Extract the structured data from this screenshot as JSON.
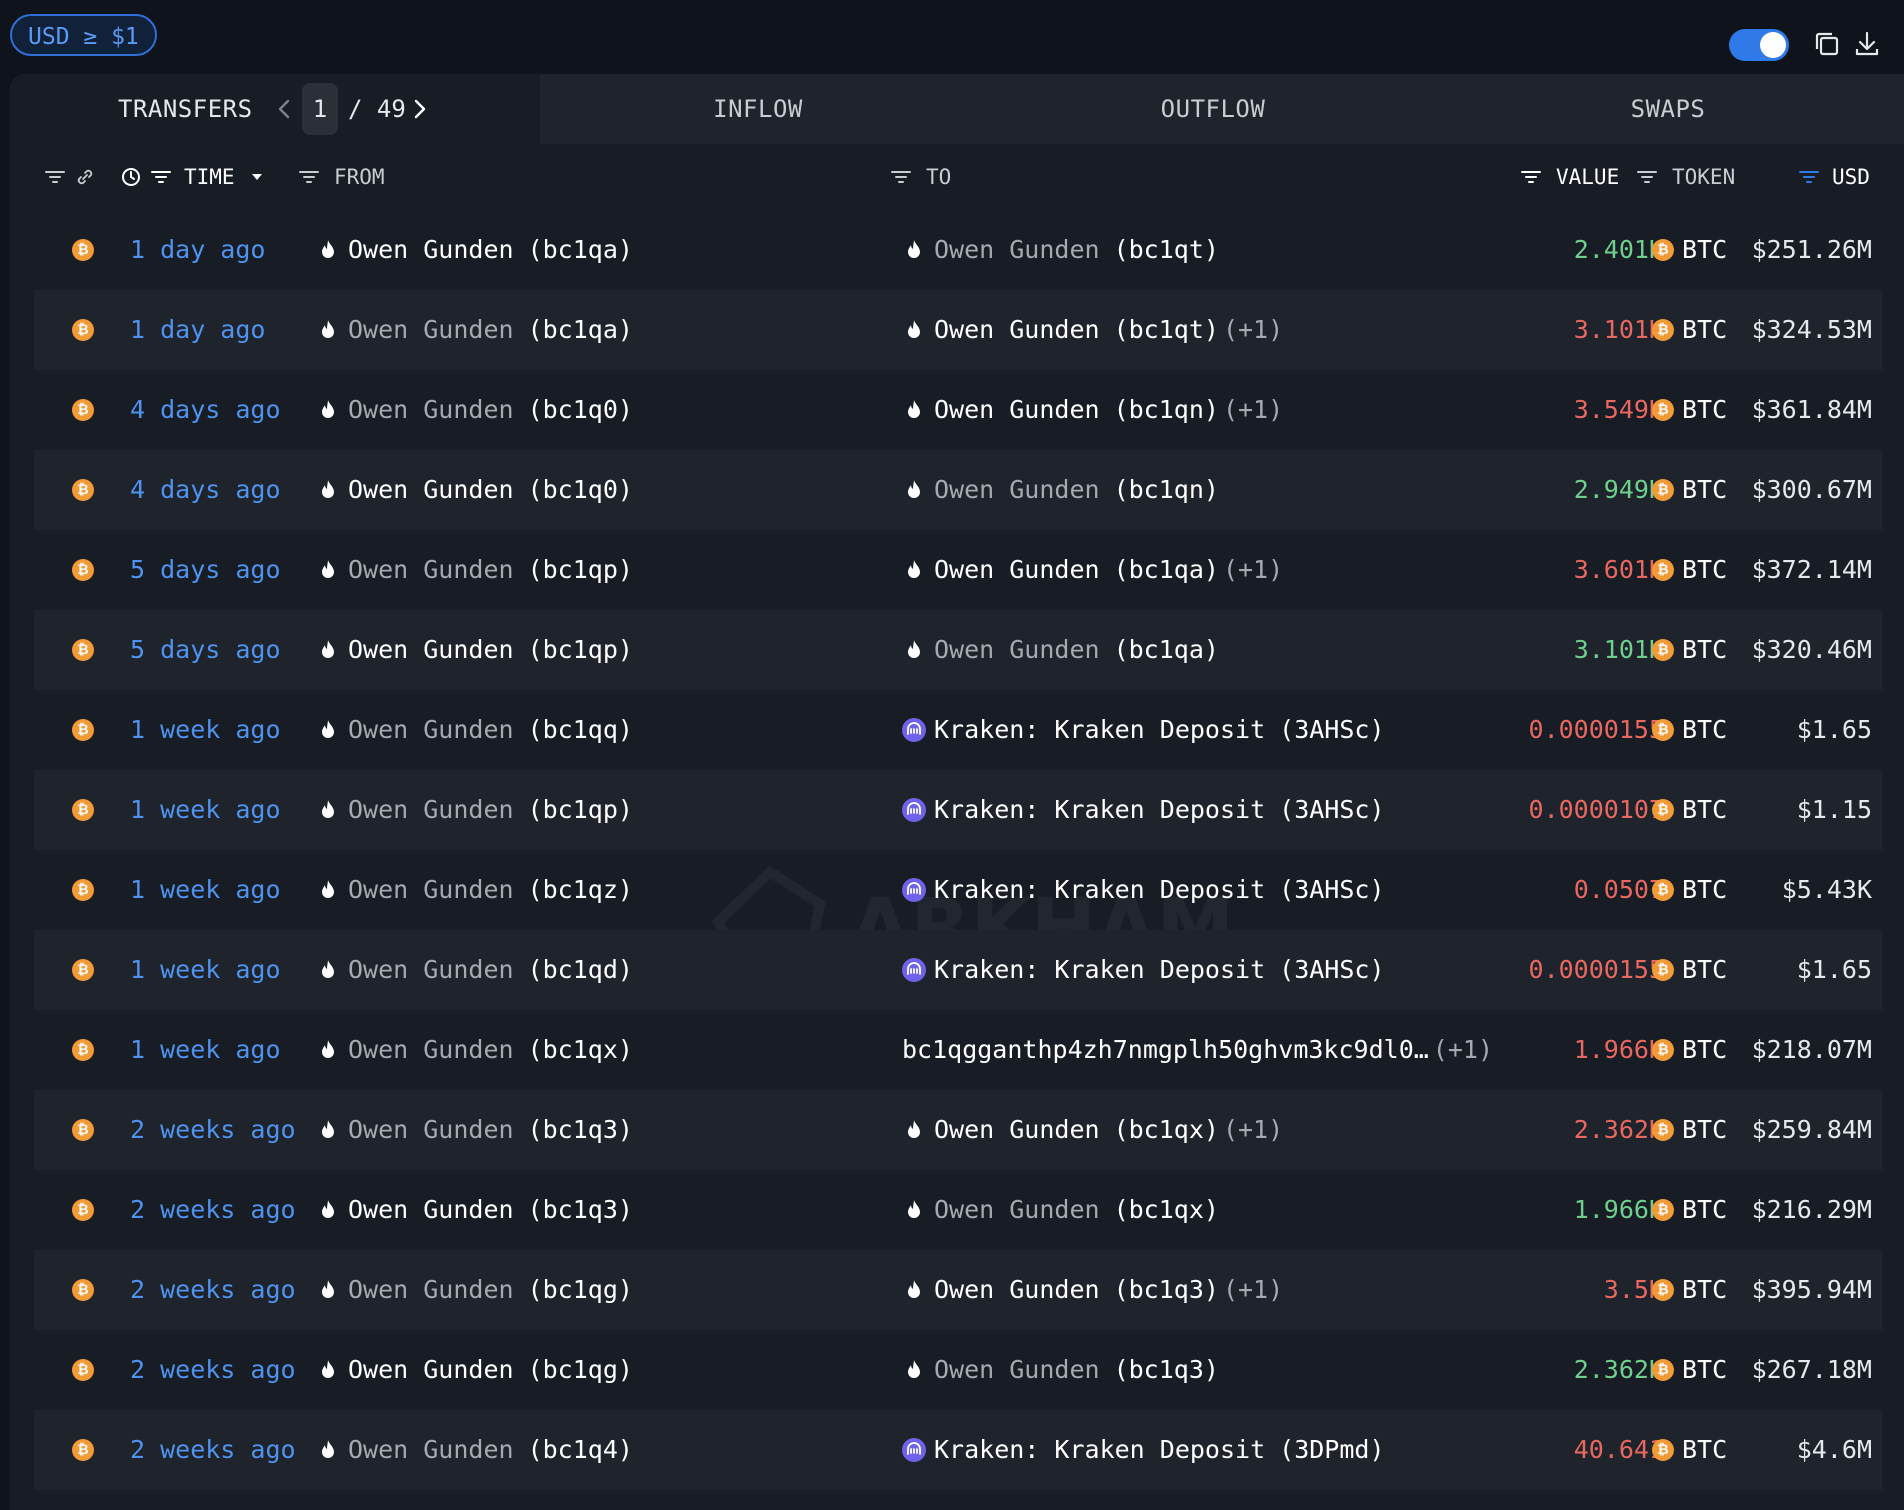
{
  "filter": {
    "label": "USD ≥ $1"
  },
  "tabs": {
    "transfers": "TRANSFERS",
    "inflow": "INFLOW",
    "outflow": "OUTFLOW",
    "swaps": "SWAPS",
    "page": "1",
    "total": "/ 49"
  },
  "columns": {
    "time": "TIME",
    "from": "FROM",
    "to": "TO",
    "value": "VALUE",
    "token": "TOKEN",
    "usd": "USD"
  },
  "colors": {
    "accent": "#2f7ae8",
    "inflow": "#6fcf8c",
    "outflow": "#e8685f",
    "time": "#4f93ef",
    "btc": "#f29a36"
  },
  "rows": [
    {
      "time": "1 day ago",
      "from_name": "Owen Gunden",
      "from_addr": "(bc1qa)",
      "from_bright": true,
      "to_name": "Owen Gunden",
      "to_addr": "(bc1qt)",
      "to_bright": false,
      "to_plus": "",
      "to_type": "owen",
      "value": "2.401K",
      "dir": "in",
      "token": "BTC",
      "usd": "$251.26M"
    },
    {
      "time": "1 day ago",
      "from_name": "Owen Gunden",
      "from_addr": "(bc1qa)",
      "from_bright": false,
      "to_name": "Owen Gunden",
      "to_addr": "(bc1qt)",
      "to_bright": true,
      "to_plus": "(+1)",
      "to_type": "owen",
      "value": "3.101K",
      "dir": "out",
      "token": "BTC",
      "usd": "$324.53M"
    },
    {
      "time": "4 days ago",
      "from_name": "Owen Gunden",
      "from_addr": "(bc1q0)",
      "from_bright": false,
      "to_name": "Owen Gunden",
      "to_addr": "(bc1qn)",
      "to_bright": true,
      "to_plus": "(+1)",
      "to_type": "owen",
      "value": "3.549K",
      "dir": "out",
      "token": "BTC",
      "usd": "$361.84M"
    },
    {
      "time": "4 days ago",
      "from_name": "Owen Gunden",
      "from_addr": "(bc1q0)",
      "from_bright": true,
      "to_name": "Owen Gunden",
      "to_addr": "(bc1qn)",
      "to_bright": false,
      "to_plus": "",
      "to_type": "owen",
      "value": "2.949K",
      "dir": "in",
      "token": "BTC",
      "usd": "$300.67M"
    },
    {
      "time": "5 days ago",
      "from_name": "Owen Gunden",
      "from_addr": "(bc1qp)",
      "from_bright": false,
      "to_name": "Owen Gunden",
      "to_addr": "(bc1qa)",
      "to_bright": true,
      "to_plus": "(+1)",
      "to_type": "owen",
      "value": "3.601K",
      "dir": "out",
      "token": "BTC",
      "usd": "$372.14M"
    },
    {
      "time": "5 days ago",
      "from_name": "Owen Gunden",
      "from_addr": "(bc1qp)",
      "from_bright": true,
      "to_name": "Owen Gunden",
      "to_addr": "(bc1qa)",
      "to_bright": false,
      "to_plus": "",
      "to_type": "owen",
      "value": "3.101K",
      "dir": "in",
      "token": "BTC",
      "usd": "$320.46M"
    },
    {
      "time": "1 week ago",
      "from_name": "Owen Gunden",
      "from_addr": "(bc1qq)",
      "from_bright": false,
      "to_name": "Kraken: Kraken Deposit",
      "to_addr": "(3AHSc)",
      "to_bright": true,
      "to_plus": "",
      "to_type": "kraken",
      "value": "0.0000155",
      "dir": "out",
      "token": "BTC",
      "usd": "$1.65"
    },
    {
      "time": "1 week ago",
      "from_name": "Owen Gunden",
      "from_addr": "(bc1qp)",
      "from_bright": false,
      "to_name": "Kraken: Kraken Deposit",
      "to_addr": "(3AHSc)",
      "to_bright": true,
      "to_plus": "",
      "to_type": "kraken",
      "value": "0.0000107",
      "dir": "out",
      "token": "BTC",
      "usd": "$1.15"
    },
    {
      "time": "1 week ago",
      "from_name": "Owen Gunden",
      "from_addr": "(bc1qz)",
      "from_bright": false,
      "to_name": "Kraken: Kraken Deposit",
      "to_addr": "(3AHSc)",
      "to_bright": true,
      "to_plus": "",
      "to_type": "kraken",
      "value": "0.0507",
      "dir": "out",
      "token": "BTC",
      "usd": "$5.43K"
    },
    {
      "time": "1 week ago",
      "from_name": "Owen Gunden",
      "from_addr": "(bc1qd)",
      "from_bright": false,
      "to_name": "Kraken: Kraken Deposit",
      "to_addr": "(3AHSc)",
      "to_bright": true,
      "to_plus": "",
      "to_type": "kraken",
      "value": "0.0000155",
      "dir": "out",
      "token": "BTC",
      "usd": "$1.65"
    },
    {
      "time": "1 week ago",
      "from_name": "Owen Gunden",
      "from_addr": "(bc1qx)",
      "from_bright": false,
      "to_name": "bc1qgganthp4zh7nmgplh50ghvm3kc9dl0…",
      "to_addr": "",
      "to_bright": true,
      "to_plus": "(+1)",
      "to_type": "address",
      "value": "1.966K",
      "dir": "out",
      "token": "BTC",
      "usd": "$218.07M"
    },
    {
      "time": "2 weeks ago",
      "from_name": "Owen Gunden",
      "from_addr": "(bc1q3)",
      "from_bright": false,
      "to_name": "Owen Gunden",
      "to_addr": "(bc1qx)",
      "to_bright": true,
      "to_plus": "(+1)",
      "to_type": "owen",
      "value": "2.362K",
      "dir": "out",
      "token": "BTC",
      "usd": "$259.84M"
    },
    {
      "time": "2 weeks ago",
      "from_name": "Owen Gunden",
      "from_addr": "(bc1q3)",
      "from_bright": true,
      "to_name": "Owen Gunden",
      "to_addr": "(bc1qx)",
      "to_bright": false,
      "to_plus": "",
      "to_type": "owen",
      "value": "1.966K",
      "dir": "in",
      "token": "BTC",
      "usd": "$216.29M"
    },
    {
      "time": "2 weeks ago",
      "from_name": "Owen Gunden",
      "from_addr": "(bc1qg)",
      "from_bright": false,
      "to_name": "Owen Gunden",
      "to_addr": "(bc1q3)",
      "to_bright": true,
      "to_plus": "(+1)",
      "to_type": "owen",
      "value": "3.5K",
      "dir": "out",
      "token": "BTC",
      "usd": "$395.94M"
    },
    {
      "time": "2 weeks ago",
      "from_name": "Owen Gunden",
      "from_addr": "(bc1qg)",
      "from_bright": true,
      "to_name": "Owen Gunden",
      "to_addr": "(bc1q3)",
      "to_bright": false,
      "to_plus": "",
      "to_type": "owen",
      "value": "2.362K",
      "dir": "in",
      "token": "BTC",
      "usd": "$267.18M"
    },
    {
      "time": "2 weeks ago",
      "from_name": "Owen Gunden",
      "from_addr": "(bc1q4)",
      "from_bright": false,
      "to_name": "Kraken: Kraken Deposit",
      "to_addr": "(3DPmd)",
      "to_bright": true,
      "to_plus": "",
      "to_type": "kraken",
      "value": "40.641",
      "dir": "out",
      "token": "BTC",
      "usd": "$4.6M"
    }
  ]
}
